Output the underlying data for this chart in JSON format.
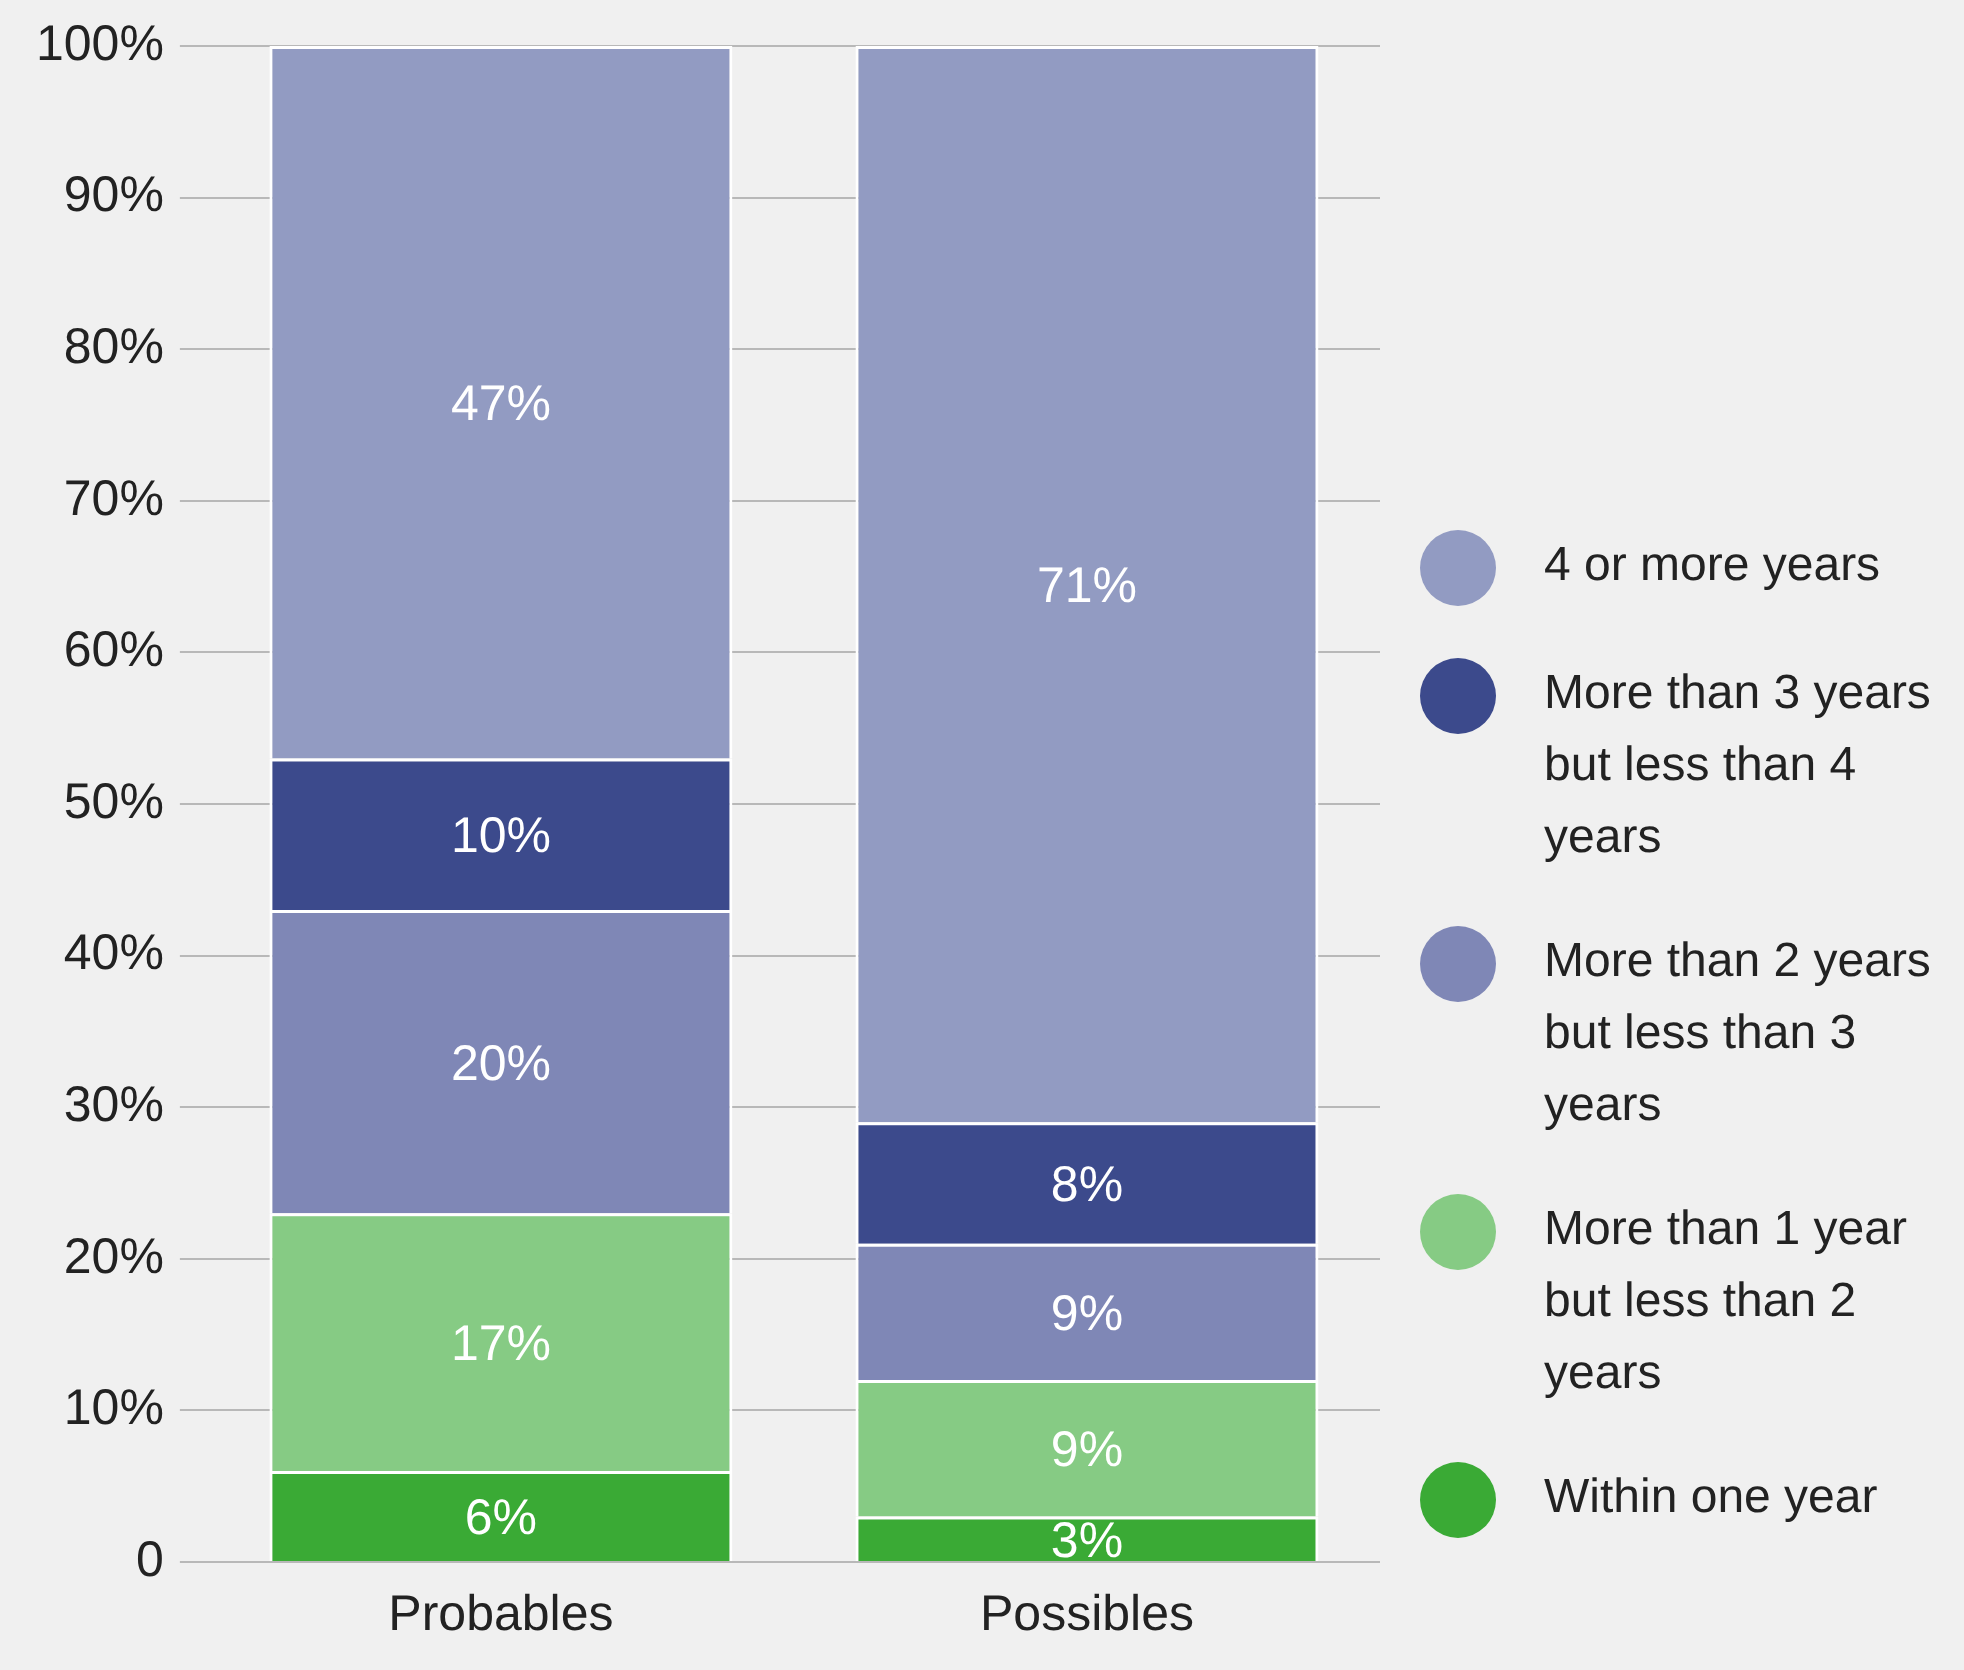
{
  "chart_data": {
    "type": "bar",
    "stacked": true,
    "categories": [
      "Probables",
      "Possibles"
    ],
    "series": [
      {
        "name": "Within one year",
        "color": "#3aaa35",
        "values": [
          6,
          3
        ],
        "value_labels": [
          "6%",
          "3%"
        ]
      },
      {
        "name": "More than 1 year but less than 2 years",
        "color": "#86cb84",
        "values": [
          17,
          9
        ],
        "value_labels": [
          "17%",
          "9%"
        ]
      },
      {
        "name": "More than 2 years but less than 3 years",
        "color": "#7f87b6",
        "values": [
          20,
          9
        ],
        "value_labels": [
          "20%",
          "9%"
        ]
      },
      {
        "name": "More than 3 years but less than 4 years",
        "color": "#3c4a8c",
        "values": [
          10,
          8
        ],
        "value_labels": [
          "10%",
          "8%"
        ]
      },
      {
        "name": "4 or more years",
        "color": "#929bc2",
        "values": [
          47,
          71
        ],
        "value_labels": [
          "47%",
          "71%"
        ]
      }
    ],
    "ylim": [
      0,
      100
    ],
    "yticks": [
      {
        "value": 0,
        "label": "0"
      },
      {
        "value": 10,
        "label": "10%"
      },
      {
        "value": 20,
        "label": "20%"
      },
      {
        "value": 30,
        "label": "30%"
      },
      {
        "value": 40,
        "label": "40%"
      },
      {
        "value": 50,
        "label": "50%"
      },
      {
        "value": 60,
        "label": "60%"
      },
      {
        "value": 70,
        "label": "70%"
      },
      {
        "value": 80,
        "label": "80%"
      },
      {
        "value": 90,
        "label": "90%"
      },
      {
        "value": 100,
        "label": "100%"
      }
    ],
    "grid": "y",
    "legend": "right"
  }
}
